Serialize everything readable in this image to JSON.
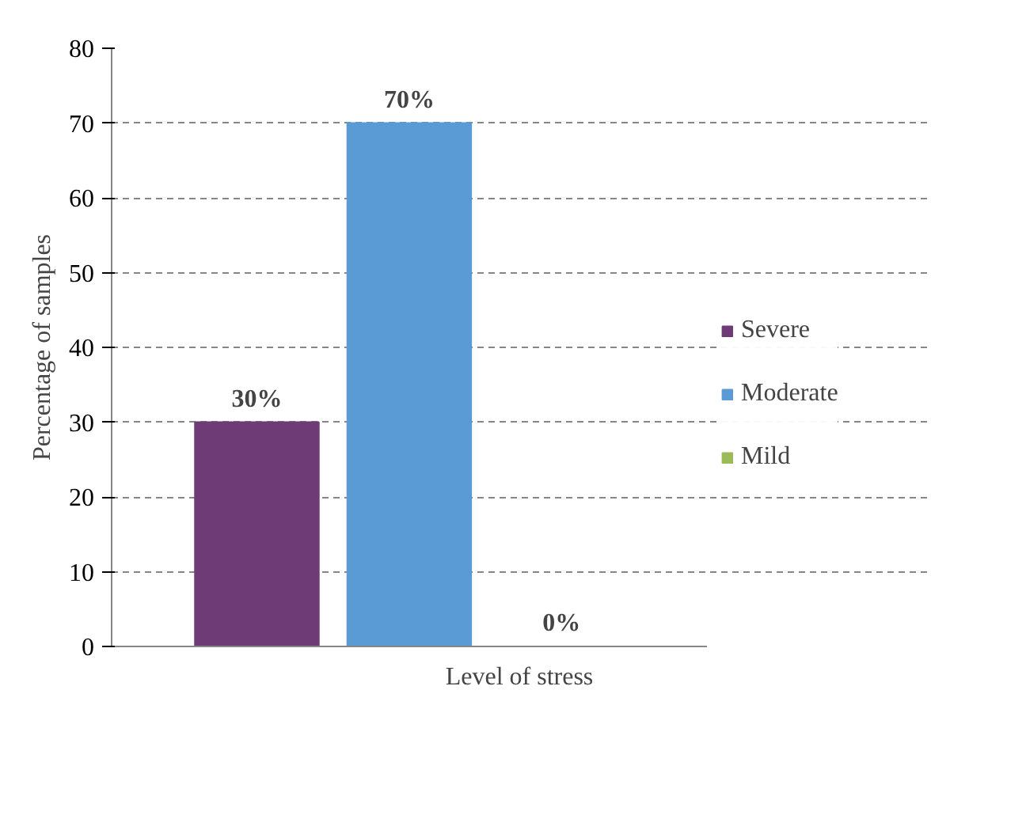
{
  "chart_data": {
    "type": "bar",
    "xlabel": "Level of stress",
    "ylabel": "Percentage of samples",
    "categories": [
      null
    ],
    "series": [
      {
        "name": "Severe",
        "color": "#6f3b77",
        "values": [
          30
        ],
        "value_labels": [
          "30%"
        ]
      },
      {
        "name": "Moderate",
        "color": "#5b9bd5",
        "values": [
          70
        ],
        "value_labels": [
          "70%"
        ]
      },
      {
        "name": "Mild",
        "color": "#9bbb59",
        "values": [
          0
        ],
        "value_labels": [
          "0%"
        ]
      }
    ],
    "ylim": [
      0,
      80
    ],
    "yticks": [
      0,
      10,
      20,
      30,
      40,
      50,
      60,
      70,
      80
    ],
    "grid": "y",
    "legend": "right"
  }
}
